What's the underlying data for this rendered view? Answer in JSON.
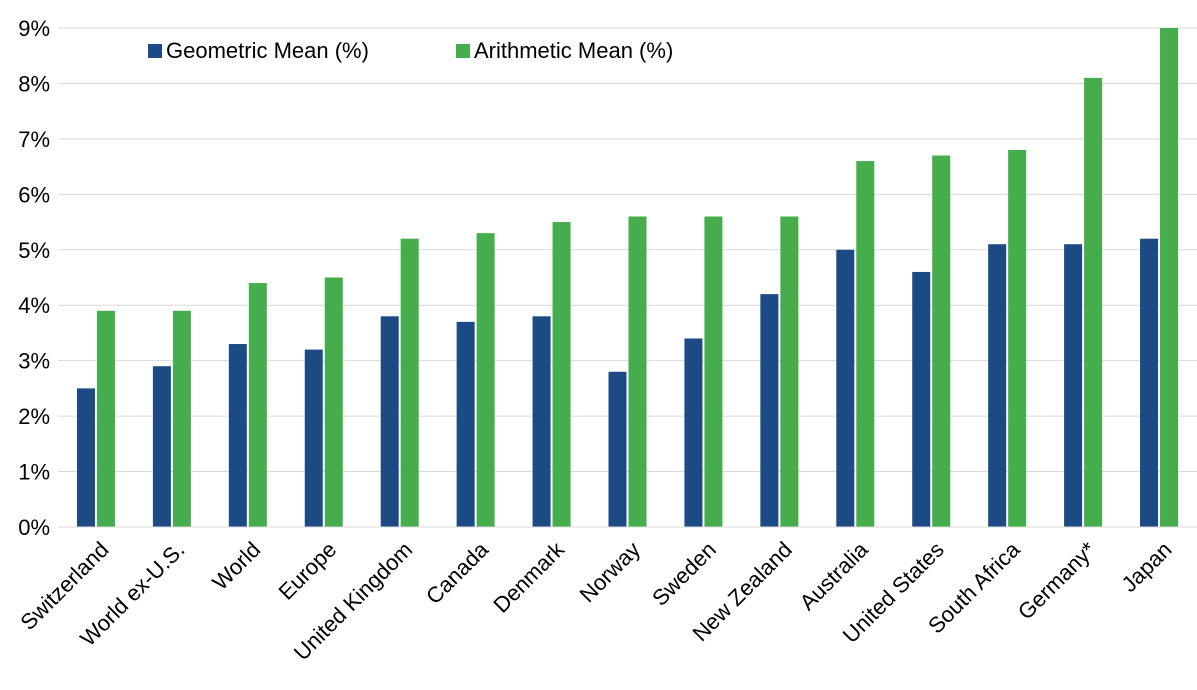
{
  "chart_data": {
    "type": "bar",
    "categories": [
      "Switzerland",
      "World ex-U.S.",
      "World",
      "Europe",
      "United Kingdom",
      "Canada",
      "Denmark",
      "Norway",
      "Sweden",
      "New Zealand",
      "Australia",
      "United States",
      "South Africa",
      "Germany*",
      "Japan"
    ],
    "series": [
      {
        "name": "Geometric Mean (%)",
        "color": "#1b4a85",
        "values": [
          2.5,
          2.9,
          3.3,
          3.2,
          3.8,
          3.7,
          3.8,
          2.8,
          3.4,
          4.2,
          5.0,
          4.6,
          5.1,
          5.1,
          5.2
        ]
      },
      {
        "name": "Arithmetic Mean (%)",
        "color": "#45ad4b",
        "values": [
          3.9,
          3.9,
          4.4,
          4.5,
          5.2,
          5.3,
          5.5,
          5.6,
          5.6,
          5.6,
          6.6,
          6.7,
          6.8,
          8.1,
          9.0
        ]
      }
    ],
    "yticks": [
      "0%",
      "1%",
      "2%",
      "3%",
      "4%",
      "5%",
      "6%",
      "7%",
      "8%",
      "9%"
    ],
    "ylim": [
      0,
      9
    ],
    "grid": true,
    "gridline_color": "#d9d9d9",
    "legend_position": "top-left"
  }
}
